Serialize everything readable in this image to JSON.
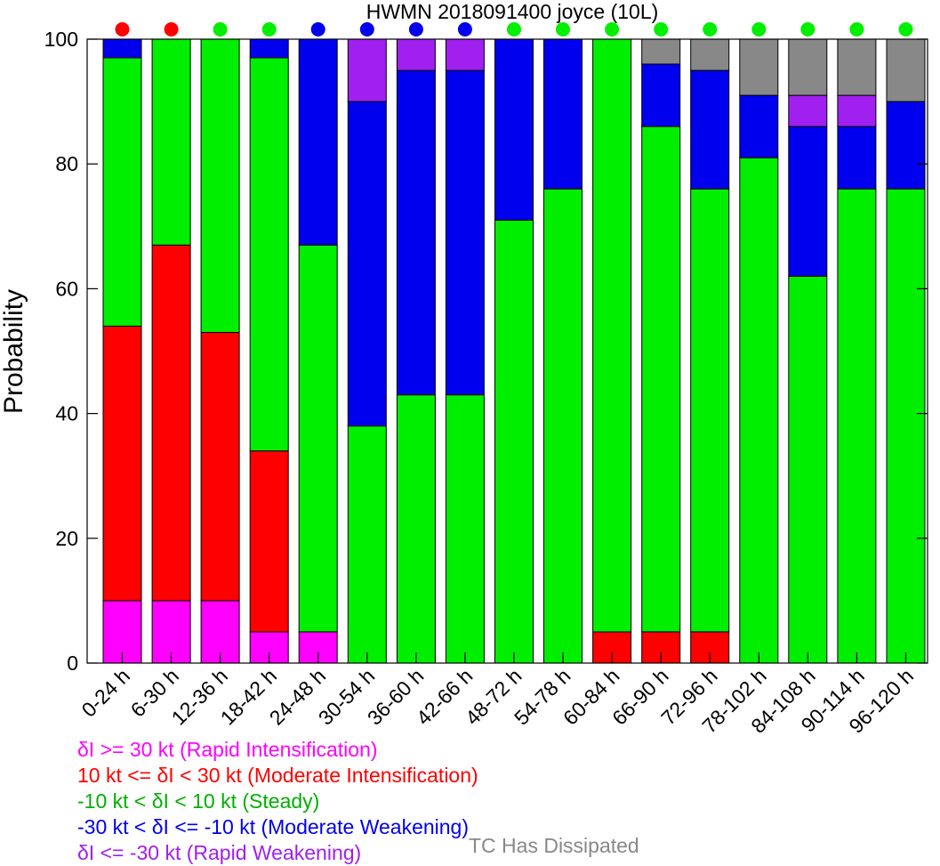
{
  "chart_data": {
    "type": "bar",
    "stacked": true,
    "title": "HWMN 2018091400 joyce (10L)",
    "ylabel": "Probability",
    "xlabel": "",
    "ylim": [
      0,
      100
    ],
    "yticks": [
      "0",
      "20",
      "40",
      "60",
      "80",
      "100"
    ],
    "grid": false,
    "categories": [
      "0-24 h",
      "6-30 h",
      "12-36 h",
      "18-42 h",
      "24-48 h",
      "30-54 h",
      "36-60 h",
      "42-66 h",
      "48-72 h",
      "54-78 h",
      "60-84 h",
      "66-90 h",
      "72-96 h",
      "78-102 h",
      "84-108 h",
      "90-114 h",
      "96-120 h"
    ],
    "series": [
      {
        "name": "δI >= 30 kt (Rapid Intensification)",
        "color": "#ff00ff",
        "values": [
          10,
          10,
          10,
          5,
          5,
          0,
          0,
          0,
          0,
          0,
          0,
          0,
          0,
          0,
          0,
          0,
          0
        ]
      },
      {
        "name": "10 kt <= δI < 30 kt (Moderate Intensification)",
        "color": "#ff0000",
        "values": [
          44,
          57,
          43,
          29,
          0,
          0,
          0,
          0,
          0,
          0,
          5,
          5,
          5,
          0,
          0,
          0,
          0
        ]
      },
      {
        "name": "-10 kt < δI < 10 kt (Steady)",
        "color": "#00ee00",
        "values": [
          43,
          33,
          47,
          63,
          62,
          38,
          43,
          43,
          71,
          76,
          95,
          81,
          71,
          81,
          62,
          76,
          76
        ]
      },
      {
        "name": "-30 kt < δI <= -10 kt (Moderate Weakening)",
        "color": "#0000ee",
        "values": [
          3,
          0,
          0,
          3,
          33,
          52,
          52,
          52,
          29,
          24,
          0,
          10,
          19,
          10,
          24,
          10,
          14
        ]
      },
      {
        "name": "δI <= -30 kt (Rapid Weakening)",
        "color": "#a020f0",
        "values": [
          0,
          0,
          0,
          0,
          0,
          10,
          5,
          5,
          0,
          0,
          0,
          0,
          0,
          0,
          5,
          5,
          0
        ]
      },
      {
        "name": "TC Has Dissipated",
        "color": "#888888",
        "values": [
          0,
          0,
          0,
          0,
          0,
          0,
          0,
          0,
          0,
          0,
          0,
          4,
          5,
          9,
          9,
          9,
          10
        ]
      }
    ],
    "category_markers": [
      "#ff0000",
      "#ff0000",
      "#00ee00",
      "#00ee00",
      "#0000ee",
      "#0000ee",
      "#0000ee",
      "#0000ee",
      "#00ee00",
      "#00ee00",
      "#00ee00",
      "#00ee00",
      "#00ee00",
      "#00ee00",
      "#00ee00",
      "#00ee00",
      "#00ee00"
    ],
    "legend": {
      "placement": "bottom",
      "entries": [
        {
          "text": "δI >= 30 kt (Rapid Intensification)",
          "color": "#ff00ff"
        },
        {
          "text": "10 kt <= δI < 30 kt (Moderate Intensification)",
          "color": "#ff0000"
        },
        {
          "text": "-10 kt < δI < 10 kt (Steady)",
          "color": "#00b000"
        },
        {
          "text": "-30 kt < δI <= -10 kt (Moderate Weakening)",
          "color": "#0000ee"
        },
        {
          "text": "δI <= -30 kt (Rapid Weakening)",
          "color": "#a020f0"
        }
      ],
      "dissipated": {
        "text": "TC Has Dissipated",
        "color": "#888888"
      }
    }
  }
}
